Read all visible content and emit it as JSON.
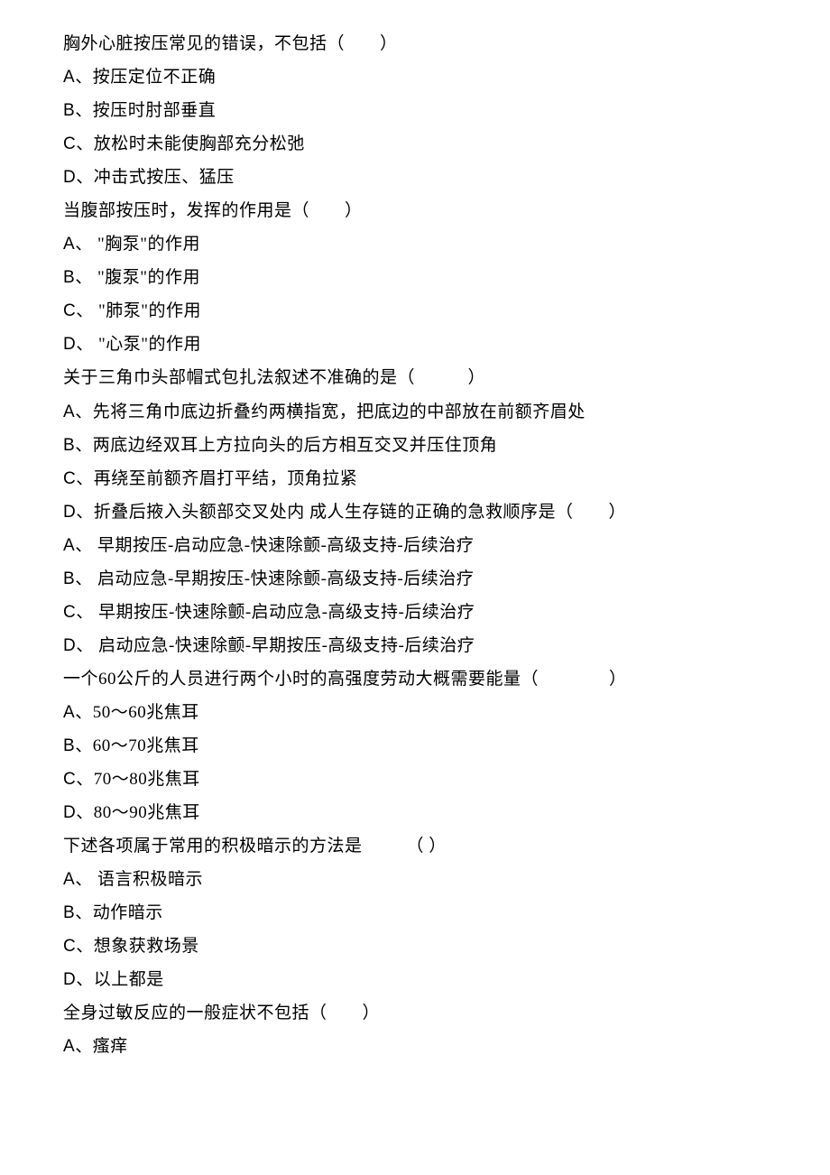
{
  "questions": [
    {
      "stem": "胸外心脏按压常见的错误，不包括（　　）",
      "options": [
        {
          "letter": "A",
          "text": "按压定位不正确"
        },
        {
          "letter": "B",
          "text": "按压时肘部垂直"
        },
        {
          "letter": "C",
          "text": "放松时未能使胸部充分松弛"
        },
        {
          "letter": "D",
          "text": "冲击式按压、猛压"
        }
      ]
    },
    {
      "stem": "当腹部按压时，发挥的作用是（　　）",
      "options": [
        {
          "letter": "A",
          "text": "\"胸泵\"的作用"
        },
        {
          "letter": "B",
          "text": "\"腹泵\"的作用"
        },
        {
          "letter": "C",
          "text": "\"肺泵\"的作用"
        },
        {
          "letter": "D",
          "text": "\"心泵\"的作用"
        }
      ]
    },
    {
      "stem": "关于三角巾头部帽式包扎法叙述不准确的是（　　　）",
      "options": [
        {
          "letter": "A",
          "text": "先将三角巾底边折叠约两横指宽，把底边的中部放在前额齐眉处"
        },
        {
          "letter": "B",
          "text": "两底边经双耳上方拉向头的后方相互交叉并压住顶角"
        },
        {
          "letter": "C",
          "text": "再绕至前额齐眉打平结，顶角拉紧"
        },
        {
          "letter": "D",
          "text": "折叠后掖入头额部交叉处内  成人生存链的正确的急救顺序是（　　）"
        }
      ]
    },
    {
      "stem": "",
      "options": [
        {
          "letter": "A",
          "text": "早期按压-启动应急-快速除颤-高级支持-后续治疗"
        },
        {
          "letter": "B",
          "text": "启动应急-早期按压-快速除颤-高级支持-后续治疗"
        },
        {
          "letter": "C",
          "text": "早期按压-快速除颤-启动应急-高级支持-后续治疗"
        },
        {
          "letter": "D",
          "text": "启动应急-快速除颤-早期按压-高级支持-后续治疗"
        }
      ]
    },
    {
      "stem": "一个60公斤的人员进行两个小时的高强度劳动大概需要能量（　　　　）",
      "options": [
        {
          "letter": "A",
          "text": "50～60兆焦耳"
        },
        {
          "letter": "B",
          "text": "60～70兆焦耳"
        },
        {
          "letter": "C",
          "text": "70～80兆焦耳"
        },
        {
          "letter": "D",
          "text": "80～90兆焦耳"
        }
      ]
    },
    {
      "stem": "下述各项属于常用的积极暗示的方法是　　　（ ）",
      "options": [
        {
          "letter": "A",
          "text": "语言积极暗示"
        },
        {
          "letter": "B",
          "text": "动作暗示"
        },
        {
          "letter": "C",
          "text": "想象获救场景"
        },
        {
          "letter": "D",
          "text": "以上都是"
        }
      ]
    },
    {
      "stem": "全身过敏反应的一般症状不包括（　　）",
      "options": [
        {
          "letter": "A",
          "text": "瘙痒"
        }
      ]
    }
  ]
}
